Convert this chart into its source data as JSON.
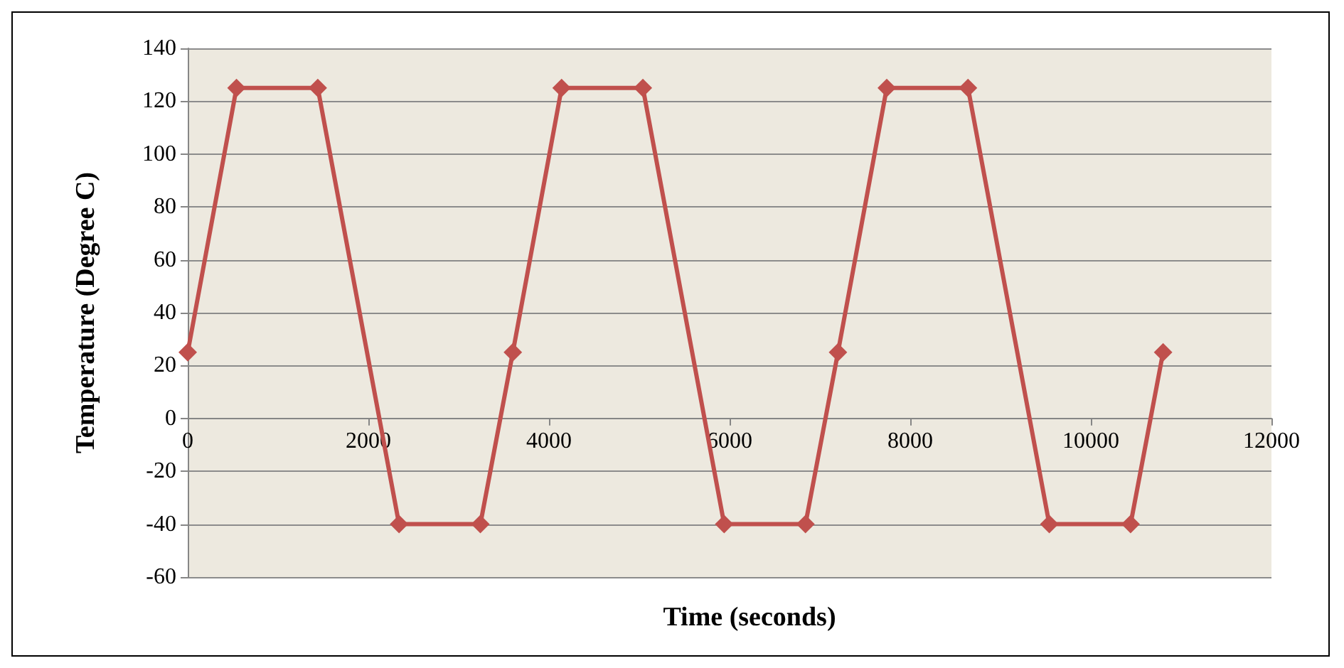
{
  "chart_data": {
    "type": "line",
    "xlabel": "Time (seconds)",
    "ylabel": "Temperature (Degree C)",
    "x": [
      0,
      540,
      1440,
      2340,
      3240,
      3600,
      4140,
      5040,
      5940,
      6840,
      7200,
      7740,
      8640,
      9540,
      10440,
      10800
    ],
    "series": [
      {
        "color": "#c0504d",
        "values": [
          25,
          125,
          125,
          -40,
          -40,
          25,
          125,
          125,
          -40,
          -40,
          25,
          125,
          125,
          -40,
          -40,
          25
        ]
      }
    ],
    "xlim": [
      0,
      12000
    ],
    "xticks": [
      0,
      2000,
      4000,
      6000,
      8000,
      10000,
      12000
    ],
    "ylim": [
      -60,
      140
    ],
    "yticks": [
      -60,
      -40,
      -20,
      0,
      20,
      40,
      60,
      80,
      100,
      120,
      140
    ],
    "grid": "y",
    "marker": "diamond",
    "line_style": "solid"
  }
}
